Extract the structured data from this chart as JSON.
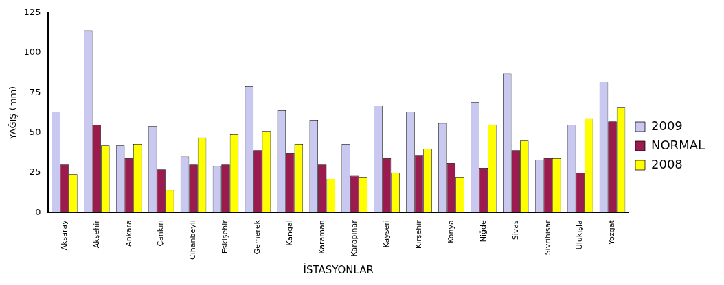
{
  "chart_data": {
    "type": "bar",
    "xlabel": "İSTASYONLAR",
    "ylabel": "YAĞIŞ (mm)",
    "categories": [
      "Aksaray",
      "Akşehir",
      "Ankara",
      "Çankırı",
      "Cihanbeyli",
      "Eskişehir",
      "Gemerek",
      "Kangal",
      "Karaman",
      "Karapınar",
      "Kayseri",
      "Kırşehir",
      "Konya",
      "Niğde",
      "Sivas",
      "Sivrihisar",
      "Ulukışla",
      "Yozgat"
    ],
    "series": [
      {
        "name": "2009",
        "color": "#c8c8f0",
        "values": [
          63,
          114,
          42,
          54,
          35,
          29,
          79,
          64,
          58,
          43,
          67,
          63,
          56,
          69,
          87,
          33,
          55,
          82
        ]
      },
      {
        "name": "NORMAL",
        "color": "#9b1b4f",
        "values": [
          30,
          55,
          34,
          27,
          30,
          30,
          39,
          37,
          30,
          23,
          34,
          36,
          31,
          28,
          39,
          34,
          25,
          57
        ]
      },
      {
        "name": "2008",
        "color": "#ffff00",
        "values": [
          24,
          42,
          43,
          14,
          47,
          49,
          51,
          43,
          21,
          22,
          25,
          40,
          22,
          55,
          45,
          34,
          59,
          66
        ]
      }
    ],
    "ylim": [
      0,
      125
    ],
    "yticks": [
      0,
      25,
      50,
      75,
      100,
      125
    ],
    "grid": false,
    "legend": "right"
  }
}
